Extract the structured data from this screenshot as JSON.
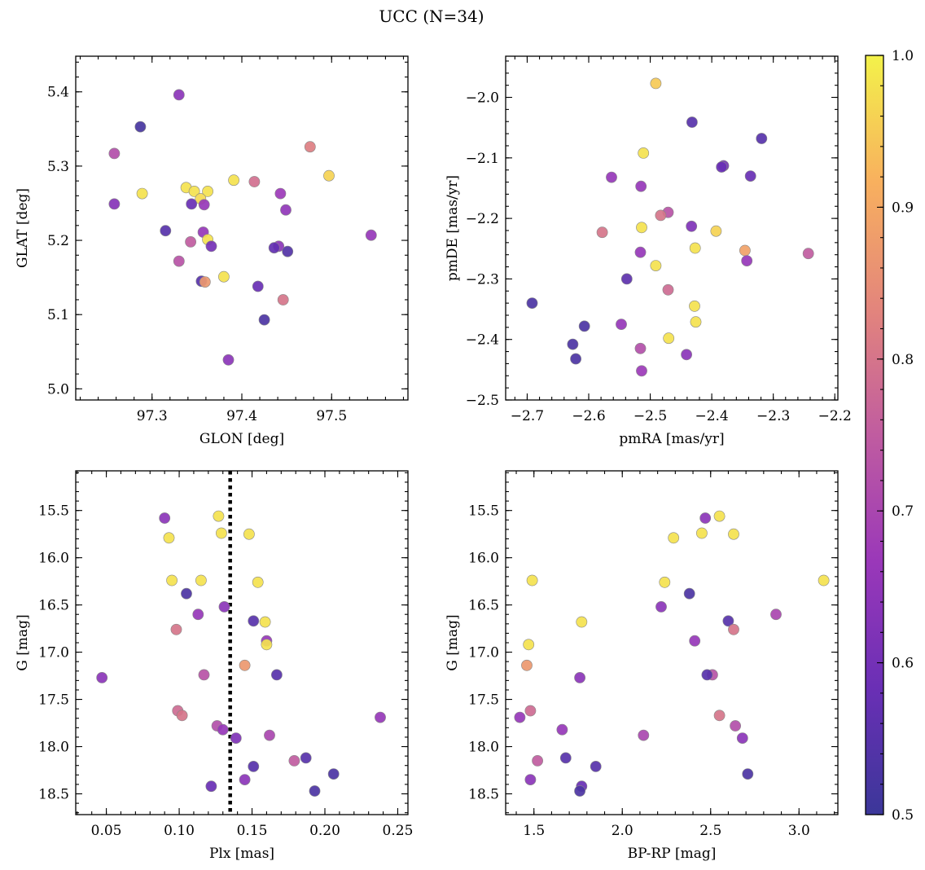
{
  "figure": {
    "title": "UCC (N=34)"
  },
  "colorbar": {
    "min": 0.5,
    "max": 1.0,
    "ticks": [
      0.5,
      0.6,
      0.7,
      0.8,
      0.9,
      1.0
    ],
    "colormap": "plasma",
    "stops": [
      "#3b3799",
      "#6a2fb5",
      "#9a38b9",
      "#c05ca0",
      "#e3857c",
      "#f8b05e",
      "#f3f24a"
    ]
  },
  "chart_data": [
    {
      "id": "glon-glat",
      "type": "scatter",
      "xlabel": "GLON [deg]",
      "ylabel": "GLAT [deg]",
      "xlim": [
        97.215,
        97.585
      ],
      "ylim": [
        4.985,
        5.448
      ],
      "xticks": [
        97.3,
        97.4,
        97.5
      ],
      "yticks": [
        5.0,
        5.1,
        5.2,
        5.3,
        5.4
      ],
      "tick_decimals": 1,
      "points": [
        {
          "x": 97.33,
          "y": 5.396,
          "c": 0.64
        },
        {
          "x": 97.287,
          "y": 5.353,
          "c": 0.52
        },
        {
          "x": 97.258,
          "y": 5.317,
          "c": 0.72
        },
        {
          "x": 97.476,
          "y": 5.326,
          "c": 0.82
        },
        {
          "x": 97.497,
          "y": 5.287,
          "c": 0.96
        },
        {
          "x": 97.391,
          "y": 5.281,
          "c": 0.98
        },
        {
          "x": 97.414,
          "y": 5.279,
          "c": 0.79
        },
        {
          "x": 97.289,
          "y": 5.263,
          "c": 0.98
        },
        {
          "x": 97.338,
          "y": 5.271,
          "c": 0.98
        },
        {
          "x": 97.347,
          "y": 5.266,
          "c": 0.98
        },
        {
          "x": 97.362,
          "y": 5.266,
          "c": 0.98
        },
        {
          "x": 97.354,
          "y": 5.256,
          "c": 0.97
        },
        {
          "x": 97.443,
          "y": 5.263,
          "c": 0.67
        },
        {
          "x": 97.258,
          "y": 5.249,
          "c": 0.63
        },
        {
          "x": 97.344,
          "y": 5.249,
          "c": 0.58
        },
        {
          "x": 97.358,
          "y": 5.248,
          "c": 0.66
        },
        {
          "x": 97.449,
          "y": 5.241,
          "c": 0.65
        },
        {
          "x": 97.544,
          "y": 5.207,
          "c": 0.66
        },
        {
          "x": 97.315,
          "y": 5.213,
          "c": 0.55
        },
        {
          "x": 97.357,
          "y": 5.211,
          "c": 0.66
        },
        {
          "x": 97.343,
          "y": 5.198,
          "c": 0.75
        },
        {
          "x": 97.362,
          "y": 5.201,
          "c": 0.98
        },
        {
          "x": 97.366,
          "y": 5.192,
          "c": 0.6
        },
        {
          "x": 97.441,
          "y": 5.192,
          "c": 0.64
        },
        {
          "x": 97.436,
          "y": 5.19,
          "c": 0.57
        },
        {
          "x": 97.451,
          "y": 5.185,
          "c": 0.54
        },
        {
          "x": 97.33,
          "y": 5.172,
          "c": 0.73
        },
        {
          "x": 97.38,
          "y": 5.151,
          "c": 0.98
        },
        {
          "x": 97.355,
          "y": 5.145,
          "c": 0.55
        },
        {
          "x": 97.359,
          "y": 5.144,
          "c": 0.87
        },
        {
          "x": 97.418,
          "y": 5.138,
          "c": 0.58
        },
        {
          "x": 97.446,
          "y": 5.12,
          "c": 0.8
        },
        {
          "x": 97.425,
          "y": 5.093,
          "c": 0.53
        },
        {
          "x": 97.385,
          "y": 5.039,
          "c": 0.64
        }
      ]
    },
    {
      "id": "pmra-pmde",
      "type": "scatter",
      "xlabel": "pmRA [mas/yr]",
      "ylabel": "pmDE [mas/yr]",
      "xlim": [
        -2.735,
        -2.195
      ],
      "ylim": [
        -2.5,
        -1.932
      ],
      "xticks": [
        -2.7,
        -2.6,
        -2.5,
        -2.4,
        -2.3,
        -2.2
      ],
      "yticks": [
        -2.5,
        -2.4,
        -2.3,
        -2.2,
        -2.1,
        -2.0
      ],
      "tick_decimals": 1,
      "points": [
        {
          "x": -2.491,
          "y": -1.977,
          "c": 0.95
        },
        {
          "x": -2.432,
          "y": -2.041,
          "c": 0.55
        },
        {
          "x": -2.319,
          "y": -2.068,
          "c": 0.55
        },
        {
          "x": -2.511,
          "y": -2.092,
          "c": 0.98
        },
        {
          "x": -2.381,
          "y": -2.113,
          "c": 0.6
        },
        {
          "x": -2.384,
          "y": -2.115,
          "c": 0.58
        },
        {
          "x": -2.337,
          "y": -2.13,
          "c": 0.58
        },
        {
          "x": -2.563,
          "y": -2.132,
          "c": 0.66
        },
        {
          "x": -2.515,
          "y": -2.147,
          "c": 0.66
        },
        {
          "x": -2.471,
          "y": -2.19,
          "c": 0.73
        },
        {
          "x": -2.483,
          "y": -2.195,
          "c": 0.8
        },
        {
          "x": -2.433,
          "y": -2.213,
          "c": 0.62
        },
        {
          "x": -2.514,
          "y": -2.215,
          "c": 0.98
        },
        {
          "x": -2.393,
          "y": -2.221,
          "c": 0.96
        },
        {
          "x": -2.578,
          "y": -2.223,
          "c": 0.8
        },
        {
          "x": -2.427,
          "y": -2.249,
          "c": 0.98
        },
        {
          "x": -2.346,
          "y": -2.253,
          "c": 0.89
        },
        {
          "x": -2.516,
          "y": -2.256,
          "c": 0.66
        },
        {
          "x": -2.243,
          "y": -2.258,
          "c": 0.75
        },
        {
          "x": -2.343,
          "y": -2.27,
          "c": 0.66
        },
        {
          "x": -2.491,
          "y": -2.278,
          "c": 0.98
        },
        {
          "x": -2.538,
          "y": -2.3,
          "c": 0.56
        },
        {
          "x": -2.471,
          "y": -2.318,
          "c": 0.78
        },
        {
          "x": -2.428,
          "y": -2.345,
          "c": 0.98
        },
        {
          "x": -2.692,
          "y": -2.34,
          "c": 0.53
        },
        {
          "x": -2.426,
          "y": -2.371,
          "c": 0.98
        },
        {
          "x": -2.547,
          "y": -2.375,
          "c": 0.66
        },
        {
          "x": -2.607,
          "y": -2.378,
          "c": 0.53
        },
        {
          "x": -2.47,
          "y": -2.398,
          "c": 0.98
        },
        {
          "x": -2.626,
          "y": -2.408,
          "c": 0.53
        },
        {
          "x": -2.516,
          "y": -2.415,
          "c": 0.72
        },
        {
          "x": -2.441,
          "y": -2.425,
          "c": 0.64
        },
        {
          "x": -2.621,
          "y": -2.432,
          "c": 0.53
        },
        {
          "x": -2.514,
          "y": -2.452,
          "c": 0.67
        }
      ]
    },
    {
      "id": "plx-g",
      "type": "scatter",
      "xlabel": "Plx [mas]",
      "ylabel": "G [mag]",
      "xlim": [
        0.029,
        0.257
      ],
      "ylim": [
        18.72,
        15.08
      ],
      "xticks": [
        0.05,
        0.1,
        0.15,
        0.2,
        0.25
      ],
      "yticks": [
        15.5,
        16.0,
        16.5,
        17.0,
        17.5,
        18.0,
        18.5
      ],
      "tick_decimals": 2,
      "ytick_decimals": 1,
      "vline": {
        "x": 0.135,
        "style": "dotted"
      },
      "points": [
        {
          "x": 0.09,
          "y": 15.58,
          "c": 0.64
        },
        {
          "x": 0.127,
          "y": 15.56,
          "c": 0.98
        },
        {
          "x": 0.093,
          "y": 15.79,
          "c": 0.98
        },
        {
          "x": 0.129,
          "y": 15.74,
          "c": 0.98
        },
        {
          "x": 0.148,
          "y": 15.75,
          "c": 0.98
        },
        {
          "x": 0.095,
          "y": 16.24,
          "c": 0.98
        },
        {
          "x": 0.115,
          "y": 16.24,
          "c": 0.98
        },
        {
          "x": 0.154,
          "y": 16.26,
          "c": 0.98
        },
        {
          "x": 0.105,
          "y": 16.38,
          "c": 0.53
        },
        {
          "x": 0.131,
          "y": 16.52,
          "c": 0.64
        },
        {
          "x": 0.113,
          "y": 16.6,
          "c": 0.66
        },
        {
          "x": 0.151,
          "y": 16.67,
          "c": 0.55
        },
        {
          "x": 0.159,
          "y": 16.68,
          "c": 0.98
        },
        {
          "x": 0.098,
          "y": 16.76,
          "c": 0.8
        },
        {
          "x": 0.16,
          "y": 16.88,
          "c": 0.66
        },
        {
          "x": 0.16,
          "y": 16.92,
          "c": 0.98
        },
        {
          "x": 0.145,
          "y": 17.14,
          "c": 0.87
        },
        {
          "x": 0.047,
          "y": 17.27,
          "c": 0.64
        },
        {
          "x": 0.117,
          "y": 17.24,
          "c": 0.73
        },
        {
          "x": 0.167,
          "y": 17.24,
          "c": 0.55
        },
        {
          "x": 0.099,
          "y": 17.62,
          "c": 0.78
        },
        {
          "x": 0.102,
          "y": 17.67,
          "c": 0.8
        },
        {
          "x": 0.238,
          "y": 17.69,
          "c": 0.66
        },
        {
          "x": 0.126,
          "y": 17.78,
          "c": 0.72
        },
        {
          "x": 0.13,
          "y": 17.82,
          "c": 0.66
        },
        {
          "x": 0.162,
          "y": 17.88,
          "c": 0.7
        },
        {
          "x": 0.139,
          "y": 17.91,
          "c": 0.62
        },
        {
          "x": 0.187,
          "y": 18.12,
          "c": 0.55
        },
        {
          "x": 0.179,
          "y": 18.15,
          "c": 0.75
        },
        {
          "x": 0.151,
          "y": 18.21,
          "c": 0.55
        },
        {
          "x": 0.206,
          "y": 18.29,
          "c": 0.53
        },
        {
          "x": 0.145,
          "y": 18.35,
          "c": 0.64
        },
        {
          "x": 0.122,
          "y": 18.42,
          "c": 0.58
        },
        {
          "x": 0.193,
          "y": 18.47,
          "c": 0.53
        }
      ]
    },
    {
      "id": "bprp-g",
      "type": "scatter",
      "xlabel": "BP-RP [mag]",
      "ylabel": "G [mag]",
      "xlim": [
        1.34,
        3.22
      ],
      "ylim": [
        18.72,
        15.08
      ],
      "xticks": [
        1.5,
        2.0,
        2.5,
        3.0
      ],
      "yticks": [
        15.5,
        16.0,
        16.5,
        17.0,
        17.5,
        18.0,
        18.5
      ],
      "tick_decimals": 1,
      "ytick_decimals": 1,
      "points": [
        {
          "x": 2.47,
          "y": 15.58,
          "c": 0.64
        },
        {
          "x": 2.55,
          "y": 15.56,
          "c": 0.98
        },
        {
          "x": 2.29,
          "y": 15.79,
          "c": 0.98
        },
        {
          "x": 2.45,
          "y": 15.74,
          "c": 0.98
        },
        {
          "x": 2.63,
          "y": 15.75,
          "c": 0.98
        },
        {
          "x": 1.49,
          "y": 16.24,
          "c": 0.98
        },
        {
          "x": 2.24,
          "y": 16.26,
          "c": 0.98
        },
        {
          "x": 3.14,
          "y": 16.24,
          "c": 0.98
        },
        {
          "x": 2.38,
          "y": 16.38,
          "c": 0.53
        },
        {
          "x": 2.22,
          "y": 16.52,
          "c": 0.64
        },
        {
          "x": 2.87,
          "y": 16.6,
          "c": 0.7
        },
        {
          "x": 2.6,
          "y": 16.67,
          "c": 0.55
        },
        {
          "x": 1.77,
          "y": 16.68,
          "c": 0.98
        },
        {
          "x": 2.63,
          "y": 16.76,
          "c": 0.8
        },
        {
          "x": 2.41,
          "y": 16.88,
          "c": 0.66
        },
        {
          "x": 1.47,
          "y": 16.92,
          "c": 0.98
        },
        {
          "x": 1.46,
          "y": 17.14,
          "c": 0.87
        },
        {
          "x": 1.76,
          "y": 17.27,
          "c": 0.64
        },
        {
          "x": 2.51,
          "y": 17.24,
          "c": 0.73
        },
        {
          "x": 2.48,
          "y": 17.24,
          "c": 0.55
        },
        {
          "x": 1.48,
          "y": 17.62,
          "c": 0.78
        },
        {
          "x": 2.55,
          "y": 17.67,
          "c": 0.8
        },
        {
          "x": 1.42,
          "y": 17.69,
          "c": 0.66
        },
        {
          "x": 1.66,
          "y": 17.82,
          "c": 0.66
        },
        {
          "x": 2.64,
          "y": 17.78,
          "c": 0.72
        },
        {
          "x": 2.12,
          "y": 17.88,
          "c": 0.7
        },
        {
          "x": 2.68,
          "y": 17.91,
          "c": 0.64
        },
        {
          "x": 1.68,
          "y": 18.12,
          "c": 0.55
        },
        {
          "x": 1.52,
          "y": 18.15,
          "c": 0.75
        },
        {
          "x": 1.85,
          "y": 18.21,
          "c": 0.55
        },
        {
          "x": 2.71,
          "y": 18.29,
          "c": 0.53
        },
        {
          "x": 1.48,
          "y": 18.35,
          "c": 0.64
        },
        {
          "x": 1.77,
          "y": 18.42,
          "c": 0.58
        },
        {
          "x": 1.76,
          "y": 18.47,
          "c": 0.53
        }
      ]
    }
  ]
}
